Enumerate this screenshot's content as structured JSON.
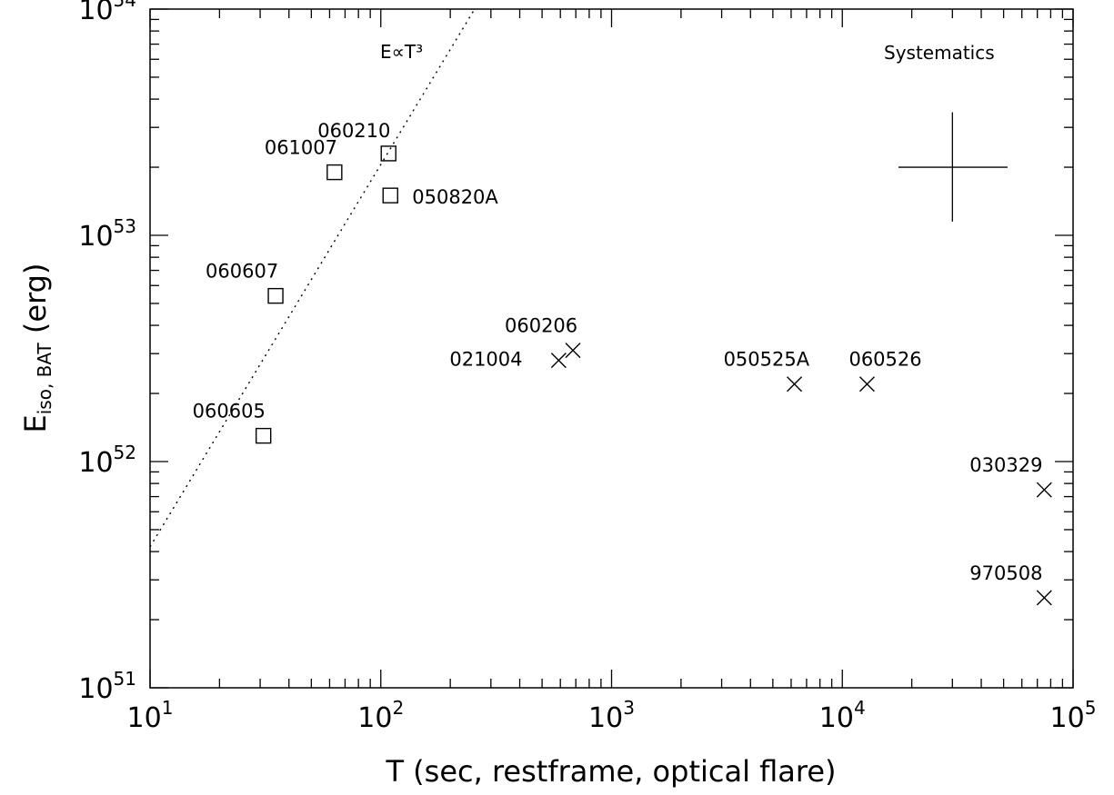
{
  "chart_data": {
    "type": "scatter",
    "title": "",
    "xlabel": "T (sec, restframe, optical flare)",
    "ylabel": {
      "main": "E",
      "sub": "iso, BAT",
      "unit": " (erg)"
    },
    "xscale": "log",
    "yscale": "log",
    "xlim": [
      10,
      100000
    ],
    "ylim": [
      1e+51,
      1e+54
    ],
    "x_ticks": [
      {
        "value": 10,
        "base": "10",
        "exp": "1"
      },
      {
        "value": 100,
        "base": "10",
        "exp": "2"
      },
      {
        "value": 1000,
        "base": "10",
        "exp": "3"
      },
      {
        "value": 10000,
        "base": "10",
        "exp": "4"
      },
      {
        "value": 100000,
        "base": "10",
        "exp": "5"
      }
    ],
    "y_ticks": [
      {
        "value": 1e+51,
        "base": "10",
        "exp": "51"
      },
      {
        "value": 1e+52,
        "base": "10",
        "exp": "52"
      },
      {
        "value": 1e+53,
        "base": "10",
        "exp": "53"
      },
      {
        "value": 1e+54,
        "base": "10",
        "exp": "54"
      }
    ],
    "grid": false,
    "legend": null,
    "series": [
      {
        "marker": "square",
        "points": [
          {
            "label": "060210",
            "x": 108,
            "y": 2.3e+53
          },
          {
            "label": "061007",
            "x": 63,
            "y": 1.9e+53
          },
          {
            "label": "050820A",
            "x": 110,
            "y": 1.5e+53
          },
          {
            "label": "060607",
            "x": 35,
            "y": 5.4e+52
          },
          {
            "label": "060605",
            "x": 31,
            "y": 1.3e+52
          }
        ]
      },
      {
        "marker": "cross",
        "points": [
          {
            "label": "060206",
            "x": 680,
            "y": 3.1e+52
          },
          {
            "label": "021004",
            "x": 590,
            "y": 2.8e+52
          },
          {
            "label": "050525A",
            "x": 6200,
            "y": 2.2e+52
          },
          {
            "label": "060526",
            "x": 12800,
            "y": 2.2e+52
          },
          {
            "label": "030329",
            "x": 75000,
            "y": 7.5e+51
          },
          {
            "label": "970508",
            "x": 75000,
            "y": 2.5e+51
          }
        ]
      }
    ],
    "lines": [
      {
        "label": "E∝T³",
        "style": "dotted",
        "points": [
          [
            10,
            4.2e+51
          ],
          [
            255,
            1e+54
          ]
        ]
      }
    ],
    "annotations": [
      {
        "text": "Systematics",
        "error_cross": {
          "x": 30000,
          "y": 2e+53,
          "x_range": [
            17500,
            52000
          ],
          "y_range": [
            1.15e+53,
            3.5e+53
          ]
        }
      }
    ]
  }
}
